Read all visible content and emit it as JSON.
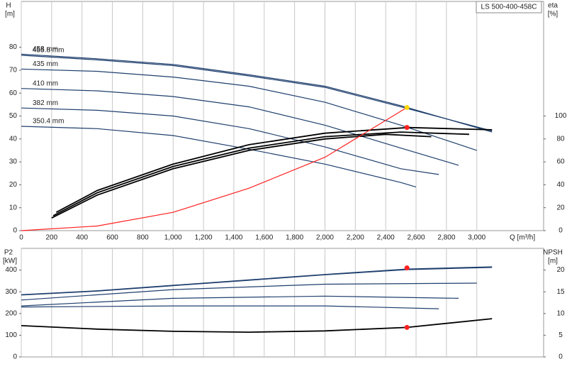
{
  "chart_data": [
    {
      "type": "line",
      "title": "LS 500-400-458C",
      "y_label": "H",
      "y_unit": "[m]",
      "y2_label": "eta",
      "y2_unit": "[%]",
      "x_label": "Q [m³/h]",
      "xlim": [
        0,
        3440
      ],
      "ylim": [
        0,
        100
      ],
      "y2lim": [
        0,
        200
      ],
      "xticks": [
        0,
        200,
        400,
        600,
        800,
        {
          "value": 1000,
          "label": "1,000"
        },
        {
          "value": 1200,
          "label": "1,200"
        },
        {
          "value": 1400,
          "label": "1,400"
        },
        {
          "value": 1600,
          "label": "1,600"
        },
        {
          "value": 1800,
          "label": "1,800"
        },
        {
          "value": 2000,
          "label": "2,000"
        },
        {
          "value": 2200,
          "label": "2,200"
        },
        {
          "value": 2400,
          "label": "2,400"
        },
        {
          "value": 2600,
          "label": "2,600"
        },
        {
          "value": 2800,
          "label": "2,800"
        },
        {
          "value": 3000,
          "label": "3,000"
        }
      ],
      "yticks": [
        0,
        10,
        20,
        30,
        40,
        50,
        60,
        70,
        80
      ],
      "y2ticks": [
        0,
        20,
        40,
        60,
        80,
        100
      ],
      "grid": true,
      "series": [
        {
          "name": "458 mm",
          "color": "#1f3f6e",
          "x": [
            0,
            500,
            1000,
            1500,
            2000,
            2500,
            3100
          ],
          "values": [
            77,
            75,
            72.5,
            68,
            63,
            54.5,
            43
          ]
        },
        {
          "name": "455.8 mm",
          "color": "#1f3f6e",
          "x": [
            0,
            500,
            1000,
            1500,
            2000,
            2500,
            3100
          ],
          "values": [
            76.5,
            74.5,
            72,
            67.5,
            62.5,
            54,
            43.5
          ]
        },
        {
          "name": "435 mm",
          "color": "#1f3f6e",
          "x": [
            0,
            500,
            1000,
            1500,
            2000,
            2500,
            3000
          ],
          "values": [
            70.5,
            69.5,
            67,
            63,
            56,
            46,
            35
          ]
        },
        {
          "name": "410 mm",
          "color": "#1f3f6e",
          "x": [
            0,
            500,
            1000,
            1500,
            2000,
            2500,
            2880
          ],
          "values": [
            62,
            61,
            58.5,
            54,
            46,
            36,
            28.5
          ]
        },
        {
          "name": "382 mm",
          "color": "#1f3f6e",
          "x": [
            0,
            500,
            1000,
            1500,
            2000,
            2500,
            2750
          ],
          "values": [
            53.5,
            52.5,
            50,
            44.5,
            36.5,
            27,
            24.5
          ]
        },
        {
          "name": "350.4 mm",
          "color": "#1f3f6e",
          "x": [
            0,
            500,
            1000,
            1500,
            2000,
            2500,
            2600
          ],
          "values": [
            45.5,
            44.5,
            41.5,
            35.5,
            29,
            21,
            19
          ]
        },
        {
          "color": "#000000",
          "axis": "y2",
          "x": [
            230,
            500,
            1000,
            1500,
            2000,
            2550,
            3100
          ],
          "values": [
            16,
            35,
            58,
            75,
            85,
            90,
            88
          ]
        },
        {
          "color": "#000000",
          "axis": "y2",
          "x": [
            210,
            500,
            1000,
            1500,
            2000,
            2500,
            2950
          ],
          "values": [
            13,
            33,
            56,
            72,
            82,
            86,
            84
          ]
        },
        {
          "color": "#000000",
          "axis": "y2",
          "x": [
            200,
            500,
            1000,
            1500,
            2000,
            2400,
            2700
          ],
          "values": [
            11,
            31,
            54,
            70,
            80,
            84,
            82
          ]
        },
        {
          "color": "#ff2020",
          "x": [
            0,
            500,
            1000,
            1500,
            2000,
            2540
          ],
          "values": [
            0,
            2,
            8,
            18.5,
            32,
            53.7
          ]
        }
      ],
      "points": [
        {
          "x": 2540,
          "value": 53.7,
          "color": "#ffd700"
        },
        {
          "x": 2540,
          "value": 90,
          "axis": "y2",
          "color": "#ff2020"
        }
      ]
    },
    {
      "type": "line",
      "y_label": "P2",
      "y_unit": "[kW]",
      "y2_label": "NPSH",
      "y2_unit": "[m]",
      "xlim": [
        0,
        3440
      ],
      "ylim": [
        0,
        500
      ],
      "y2lim": [
        0,
        25
      ],
      "yticks": [
        0,
        100,
        200,
        300,
        400
      ],
      "y2ticks": [
        0,
        5,
        10,
        15,
        20
      ],
      "series": [
        {
          "color": "#1f3f6e",
          "x": [
            0,
            500,
            1000,
            1500,
            2000,
            2540,
            3100
          ],
          "values": [
            287,
            305,
            330,
            355,
            380,
            405,
            415
          ]
        },
        {
          "color": "#1f3f6e",
          "x": [
            0,
            500,
            1000,
            1500,
            2000,
            2540,
            3100
          ],
          "values": [
            285,
            303,
            328,
            353,
            378,
            402,
            412
          ]
        },
        {
          "color": "#1f3f6e",
          "x": [
            0,
            1000,
            2000,
            3000
          ],
          "values": [
            262,
            310,
            335,
            340
          ]
        },
        {
          "color": "#1f3f6e",
          "x": [
            0,
            1000,
            2000,
            2880
          ],
          "values": [
            235,
            270,
            280,
            270
          ]
        },
        {
          "color": "#1f3f6e",
          "x": [
            0,
            1000,
            2000,
            2750
          ],
          "values": [
            230,
            235,
            235,
            222
          ]
        },
        {
          "color": "#000000",
          "axis": "y2",
          "x": [
            0,
            500,
            1000,
            1500,
            2000,
            2540,
            3100
          ],
          "values": [
            7.2,
            6.4,
            5.9,
            5.7,
            6,
            6.8,
            8.8
          ]
        }
      ],
      "points": [
        {
          "x": 2540,
          "value": 410,
          "color": "#ff2020"
        },
        {
          "x": 2540,
          "value": 6.8,
          "axis": "y2",
          "color": "#ff2020"
        }
      ]
    }
  ]
}
